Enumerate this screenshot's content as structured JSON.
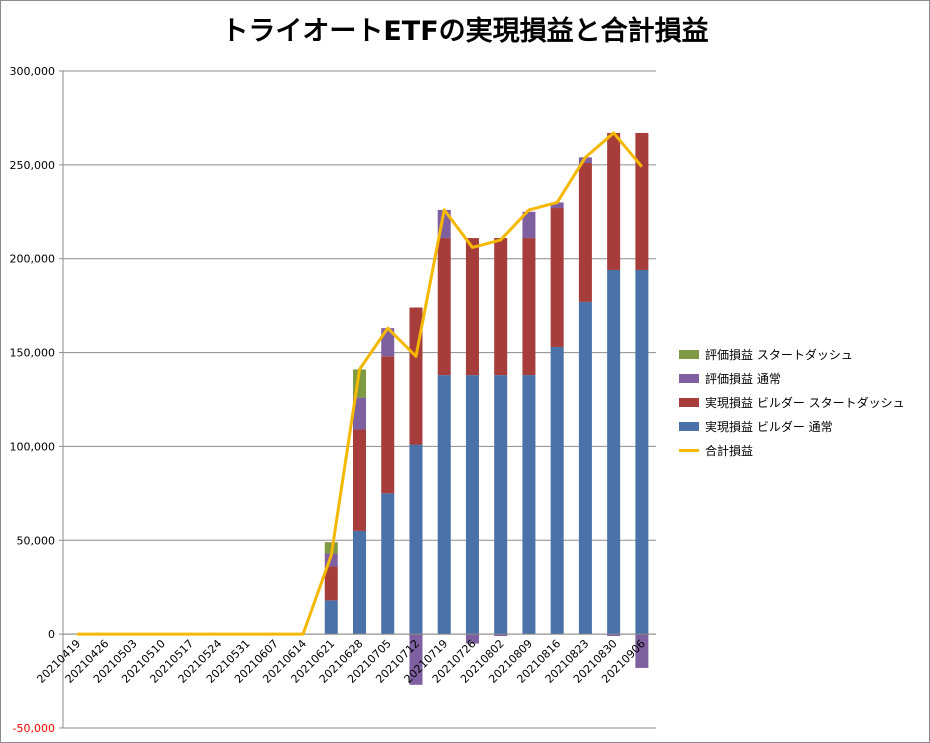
{
  "chart_data": {
    "type": "bar",
    "title": "トライオートETFの実現損益と合計損益",
    "xlabel": "",
    "ylabel": "",
    "ylim": [
      -50000,
      300000
    ],
    "yticks": [
      -50000,
      0,
      50000,
      100000,
      150000,
      200000,
      250000,
      300000
    ],
    "ytick_labels": [
      "-50,000",
      "0",
      "50,000",
      "100,000",
      "150,000",
      "200,000",
      "250,000",
      "300,000"
    ],
    "negative_tick_color": "#ff0000",
    "grid": true,
    "legend_position": "right",
    "categories": [
      "20210419",
      "20210426",
      "20210503",
      "20210510",
      "20210517",
      "20210524",
      "20210531",
      "20210607",
      "20210614",
      "20210621",
      "20210628",
      "20210705",
      "20210712",
      "20210719",
      "20210726",
      "20210802",
      "20210809",
      "20210816",
      "20210823",
      "20210830",
      "20210906"
    ],
    "series": [
      {
        "name": "実現損益 ビルダー 通常",
        "kind": "bar",
        "color": "#4a72a8",
        "values": [
          0,
          0,
          0,
          0,
          0,
          0,
          0,
          0,
          0,
          18000,
          55000,
          75000,
          101000,
          138000,
          138000,
          138000,
          138000,
          153000,
          177000,
          194000,
          194000
        ]
      },
      {
        "name": "実現損益 ビルダー スタートダッシュ",
        "kind": "bar",
        "color": "#a63d3a",
        "values": [
          0,
          0,
          0,
          0,
          0,
          0,
          0,
          0,
          0,
          18000,
          54000,
          73000,
          73000,
          73000,
          73000,
          73000,
          73000,
          74000,
          74000,
          73000,
          73000
        ]
      },
      {
        "name": "評価損益 通常",
        "kind": "bar",
        "color": "#7e5fa0",
        "values": [
          0,
          0,
          0,
          0,
          0,
          0,
          0,
          0,
          0,
          7000,
          17000,
          15000,
          -27000,
          15000,
          -5000,
          -1000,
          14000,
          3000,
          3000,
          -1000,
          -18000
        ]
      },
      {
        "name": "評価損益 スタートダッシュ",
        "kind": "bar",
        "color": "#7f9a44",
        "values": [
          0,
          0,
          0,
          0,
          0,
          0,
          0,
          0,
          0,
          6000,
          15000,
          0,
          0,
          0,
          0,
          0,
          0,
          0,
          0,
          0,
          0
        ]
      },
      {
        "name": "合計損益",
        "kind": "line",
        "color": "#f5b800",
        "values": [
          0,
          0,
          0,
          0,
          0,
          0,
          0,
          0,
          0,
          42000,
          141000,
          163000,
          148000,
          226000,
          206000,
          210000,
          226000,
          230000,
          254000,
          267000,
          249000
        ]
      }
    ],
    "legend_order": [
      {
        "name": "評価損益 スタートダッシュ",
        "kind": "bar",
        "color": "#7f9a44"
      },
      {
        "name": "評価損益 通常",
        "kind": "bar",
        "color": "#7e5fa0"
      },
      {
        "name": "実現損益 ビルダー スタートダッシュ",
        "kind": "bar",
        "color": "#a63d3a"
      },
      {
        "name": "実現損益 ビルダー 通常",
        "kind": "bar",
        "color": "#4a72a8"
      },
      {
        "name": "合計損益",
        "kind": "line",
        "color": "#f5b800"
      }
    ]
  }
}
